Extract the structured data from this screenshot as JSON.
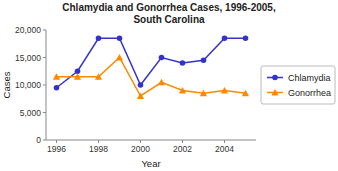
{
  "chart_data": {
    "type": "line",
    "title": "Chlamydia and Gonorrhea Cases, 1996-2005,\nSouth Carolina",
    "xlabel": "Year",
    "ylabel": "Cases",
    "x": [
      1996,
      1997,
      1998,
      1999,
      2000,
      2001,
      2002,
      2003,
      2004,
      2005
    ],
    "series": [
      {
        "name": "Chlamydia",
        "color": "#3333cc",
        "marker": "circle",
        "values": [
          9500,
          12500,
          18500,
          18500,
          10000,
          15000,
          14000,
          14500,
          18500,
          18500
        ]
      },
      {
        "name": "Gonorrhea",
        "color": "#ff8800",
        "marker": "triangle",
        "values": [
          11500,
          11500,
          11500,
          15000,
          8000,
          10500,
          9000,
          8500,
          9000,
          8500
        ]
      }
    ],
    "xlim": [
      1995.5,
      2005.5
    ],
    "xticks": [
      1996,
      1998,
      2000,
      2002,
      2004
    ],
    "ylim": [
      0,
      20000
    ],
    "yticks": [
      0,
      {
        "value": 5000,
        "label": "5,000"
      },
      {
        "value": 10000,
        "label": "10,000"
      },
      {
        "value": 15000,
        "label": "15,000"
      },
      {
        "value": 20000,
        "label": "20,000"
      }
    ],
    "legend": "center right",
    "grid": false
  }
}
